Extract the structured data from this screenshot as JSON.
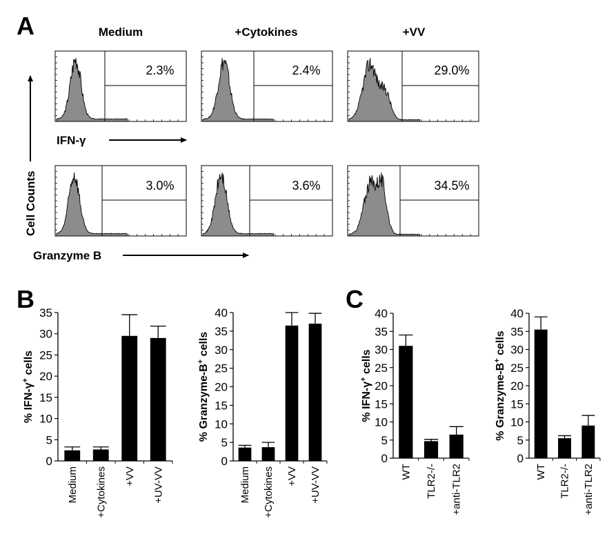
{
  "panels": {
    "A": "A",
    "B": "B",
    "C": "C"
  },
  "panel_a": {
    "conditions": [
      "Medium",
      "+Cytokines",
      "+VV"
    ],
    "rows": [
      {
        "marker": "IFN-γ",
        "percents": [
          "2.3%",
          "2.4%",
          "29.0%"
        ]
      },
      {
        "marker": "Granzyme B",
        "percents": [
          "3.0%",
          "3.6%",
          "34.5%"
        ]
      }
    ],
    "y_label": "Cell Counts",
    "colors": {
      "histogram_fill": "#8c8c8c",
      "line": "#000000"
    }
  },
  "chart_data": [
    {
      "type": "bar",
      "panel": "B",
      "ylabel": "% IFN-γ+ cells",
      "categories": [
        "Medium",
        "+Cytokines",
        "+VV",
        "+UV-VV"
      ],
      "values": [
        2.5,
        2.7,
        29.5,
        29.0
      ],
      "errors": [
        0.8,
        0.6,
        5.0,
        2.8
      ],
      "ylim": [
        0,
        35
      ],
      "yticks": [
        "0",
        "5",
        "10",
        "15",
        "20",
        "25",
        "30",
        "35"
      ],
      "bar_color": "#000000"
    },
    {
      "type": "bar",
      "panel": "B",
      "ylabel": "% Granzyme-B+ cells",
      "categories": [
        "Medium",
        "+Cytokines",
        "+VV",
        "+UV-VV"
      ],
      "values": [
        3.6,
        3.7,
        36.5,
        37.0
      ],
      "errors": [
        0.6,
        1.3,
        3.5,
        2.8
      ],
      "ylim": [
        0,
        40
      ],
      "yticks": [
        "0",
        "5",
        "10",
        "15",
        "20",
        "25",
        "30",
        "35",
        "40"
      ],
      "bar_color": "#000000"
    },
    {
      "type": "bar",
      "panel": "C",
      "ylabel": "% IFN-γ+ cells",
      "categories": [
        "WT",
        "TLR2-/-",
        "+anti-TLR2"
      ],
      "values": [
        31.0,
        4.7,
        6.5
      ],
      "errors": [
        3.0,
        0.5,
        2.2
      ],
      "ylim": [
        0,
        40
      ],
      "yticks": [
        "0",
        "5",
        "10",
        "15",
        "20",
        "25",
        "30",
        "35",
        "40"
      ],
      "bar_color": "#000000"
    },
    {
      "type": "bar",
      "panel": "C",
      "ylabel": "% Granzyme-B+ cells",
      "categories": [
        "WT",
        "TLR2-/-",
        "+anti-TLR2"
      ],
      "values": [
        35.5,
        5.5,
        9.0
      ],
      "errors": [
        3.5,
        0.7,
        2.8
      ],
      "ylim": [
        0,
        40
      ],
      "yticks": [
        "0",
        "5",
        "10",
        "15",
        "20",
        "25",
        "30",
        "35",
        "40"
      ],
      "bar_color": "#000000"
    }
  ]
}
